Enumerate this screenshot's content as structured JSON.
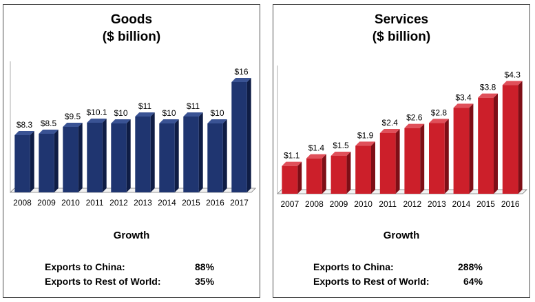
{
  "charts": {
    "goods": {
      "title_line1": "Goods",
      "title_line2": "($ billion)",
      "growth_label": "Growth",
      "stats": [
        {
          "label": "Exports to China:",
          "value": "88%"
        },
        {
          "label": "Exports to Rest of World:",
          "value": "35%"
        }
      ]
    },
    "services": {
      "title_line1": "Services",
      "title_line2": "($ billion)",
      "growth_label": "Growth",
      "stats": [
        {
          "label": "Exports to China:",
          "value": "288%"
        },
        {
          "label": "Exports to Rest of World:",
          "value": "64%"
        }
      ]
    }
  },
  "chart_data": [
    {
      "type": "bar",
      "title": "Goods ($ billion)",
      "categories": [
        "2008",
        "2009",
        "2010",
        "2011",
        "2012",
        "2013",
        "2014",
        "2015",
        "2016",
        "2017"
      ],
      "values": [
        8.3,
        8.5,
        9.5,
        10.1,
        10,
        11,
        10,
        11,
        10,
        16
      ],
      "data_labels": [
        "$8.3",
        "$8.5",
        "$9.5",
        "$10.1",
        "$10",
        "$11",
        "$10",
        "$11",
        "$10",
        "$16"
      ],
      "ylim": [
        0,
        18
      ],
      "color": "#1f3570",
      "color_side": "#0f1d45",
      "color_top": "#3a5394",
      "grid": false,
      "legend": "none"
    },
    {
      "type": "bar",
      "title": "Services ($ billion)",
      "categories": [
        "2007",
        "2008",
        "2009",
        "2010",
        "2011",
        "2012",
        "2013",
        "2014",
        "2015",
        "2016"
      ],
      "values": [
        1.1,
        1.4,
        1.5,
        1.9,
        2.4,
        2.6,
        2.8,
        3.4,
        3.8,
        4.3
      ],
      "data_labels": [
        "$1.1",
        "$1.4",
        "$1.5",
        "$1.9",
        "$2.4",
        "$2.6",
        "$2.8",
        "$3.4",
        "$3.8",
        "$4.3"
      ],
      "ylim": [
        0,
        4.8
      ],
      "color": "#cc1f2a",
      "color_side": "#7e0e16",
      "color_top": "#e0505a",
      "grid": false,
      "legend": "none"
    }
  ]
}
